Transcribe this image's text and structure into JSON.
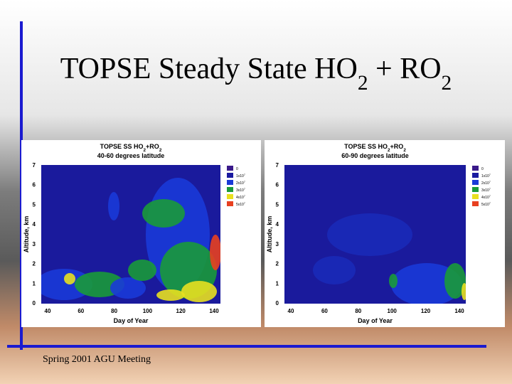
{
  "slide": {
    "title": [
      "TOPSE Steady State HO",
      "2",
      " + RO",
      "2"
    ],
    "footer": "Spring 2001 AGU Meeting"
  },
  "panels": [
    {
      "title": [
        "TOPSE SS HO",
        "2",
        "+RO",
        "2"
      ],
      "subtitle": "40-60 degrees latitude",
      "y_label": "Altitude, km",
      "x_label": "Day of Year",
      "y_ticks": [
        "0",
        "1",
        "2",
        "3",
        "4",
        "5",
        "6",
        "7"
      ],
      "x_ticks": [
        "40",
        "60",
        "80",
        "100",
        "120",
        "140"
      ],
      "legend": [
        [
          "0"
        ],
        [
          "1x10",
          "7"
        ],
        [
          "2x10",
          "7"
        ],
        [
          "3x10",
          "7"
        ],
        [
          "4x10",
          "7"
        ],
        [
          "5x10",
          "7"
        ]
      ]
    },
    {
      "title": [
        "TOPSE SS HO",
        "2",
        "+RO",
        "2"
      ],
      "subtitle": "60-90 degrees latitude",
      "y_label": "Altitude, km",
      "x_label": "Day of Year",
      "y_ticks": [
        "0",
        "1",
        "2",
        "3",
        "4",
        "5",
        "6",
        "7"
      ],
      "x_ticks": [
        "40",
        "60",
        "80",
        "100",
        "120",
        "140"
      ],
      "legend": [
        [
          "0"
        ],
        [
          "1x10",
          "7"
        ],
        [
          "2x10",
          "7"
        ],
        [
          "3x10",
          "7"
        ],
        [
          "4x10",
          "7"
        ],
        [
          "5x10",
          "7"
        ]
      ]
    }
  ]
}
